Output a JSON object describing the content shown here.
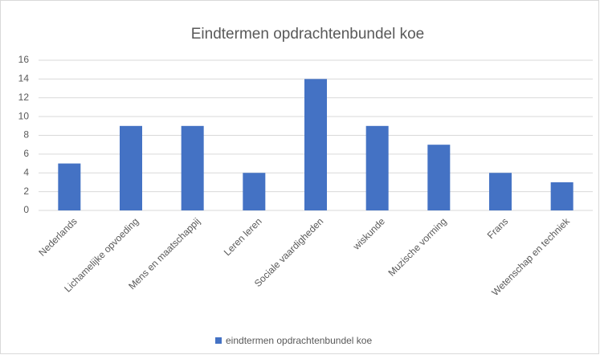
{
  "chart_data": {
    "type": "bar",
    "title": "Eindtermen opdrachtenbundel koe",
    "categories": [
      "Nederlands",
      "Lichamelijke opvoeding",
      "Mens en maatschappij",
      "Leren leren",
      "Sociale vaardigheden",
      "wiskunde",
      "Muzische vorming",
      "Frans",
      "Wetenschap en techniek"
    ],
    "series": [
      {
        "name": "eindtermen opdrachtenbundel koe",
        "color": "#4472c4",
        "values": [
          5,
          9,
          9,
          4,
          14,
          9,
          7,
          4,
          3
        ]
      }
    ],
    "ylim": [
      0,
      16
    ],
    "yticks": [
      0,
      2,
      4,
      6,
      8,
      10,
      12,
      14,
      16
    ],
    "grid": true,
    "legend": "bottom"
  }
}
